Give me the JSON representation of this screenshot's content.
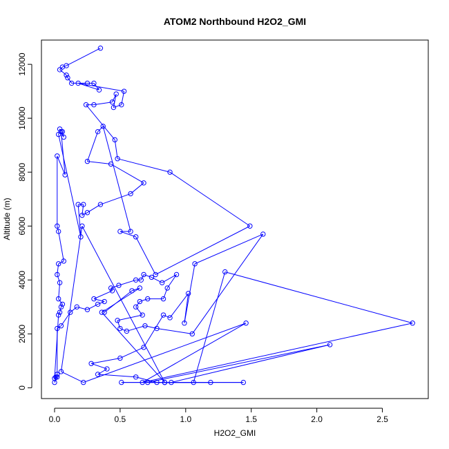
{
  "chart_data": {
    "type": "scatter",
    "title": "ATOM2 Northbound H2O2_GMI",
    "xlabel": "H2O2_GMI",
    "ylabel": "Altitude (m)",
    "xlim": [
      -0.1,
      2.85
    ],
    "ylim": [
      -400,
      12900
    ],
    "x_ticks": [
      0.0,
      0.5,
      1.0,
      1.5,
      2.0,
      2.5
    ],
    "x_tick_labels": [
      "0.0",
      "0.5",
      "1.0",
      "1.5",
      "2.0",
      "2.5"
    ],
    "y_ticks": [
      0,
      2000,
      4000,
      6000,
      8000,
      10000,
      12000
    ],
    "y_tick_labels": [
      "0",
      "2000",
      "4000",
      "6000",
      "8000",
      "10000",
      "12000"
    ],
    "grid": false,
    "legend": "none",
    "colors": {
      "series": "#0000ff",
      "axis": "#000000",
      "background": "#ffffff"
    },
    "series": [
      {
        "mode": "lines+markers",
        "x": [
          0.35,
          0.09,
          0.06,
          0.04,
          0.09,
          0.1,
          0.13,
          0.25,
          0.3,
          0.34,
          0.18,
          0.53,
          0.51,
          0.45,
          0.47,
          0.44,
          0.3,
          0.24,
          0.46,
          0.48,
          0.88,
          1.49,
          0.77,
          0.62,
          0.5,
          0.58,
          0.37,
          0.33,
          0.25,
          0.43,
          0.68,
          0.58,
          0.35,
          0.25,
          0.21,
          0.22,
          0.18,
          0.2,
          0.03,
          0.04,
          0.06,
          0.07,
          0.05,
          0.08,
          0.02,
          0.02,
          0.03,
          0.07,
          0.03,
          0.02,
          0.04,
          0.03,
          0.06,
          0.05,
          0.04,
          0.03,
          0.0,
          0.02,
          0.0,
          0.01,
          0.02,
          0.02,
          0.05,
          0.12,
          0.17,
          0.25,
          0.33,
          0.38,
          0.3,
          0.44,
          0.43,
          0.49,
          0.62,
          0.66,
          0.68,
          0.74,
          0.82,
          0.93,
          0.86,
          0.83,
          0.71,
          0.65,
          0.62,
          0.67,
          0.48,
          0.5,
          0.55,
          0.69,
          0.78,
          1.05,
          1.59,
          1.07,
          0.99,
          1.02,
          0.88,
          0.83,
          0.68,
          0.5,
          0.28,
          0.4,
          0.33,
          0.62,
          0.78,
          1.06,
          1.3,
          2.73,
          0.67,
          1.46,
          0.22,
          0.05,
          0.21,
          0.84,
          1.44,
          0.51,
          0.89,
          2.1,
          0.71,
          1.19,
          0.84,
          0.36,
          0.65,
          0.59,
          0.38
        ],
        "y": [
          12600,
          11950,
          11900,
          11800,
          11600,
          11500,
          11300,
          11300,
          11300,
          11050,
          11300,
          11000,
          10500,
          10400,
          10900,
          10600,
          10500,
          10500,
          9200,
          8500,
          8000,
          6000,
          4200,
          5600,
          5800,
          5800,
          9700,
          9500,
          8400,
          8300,
          7600,
          7200,
          6800,
          6500,
          6400,
          6800,
          6800,
          5600,
          9400,
          9600,
          9500,
          9300,
          9500,
          7900,
          8600,
          6000,
          5800,
          4700,
          4600,
          4200,
          3900,
          3300,
          3100,
          3000,
          2800,
          2700,
          350,
          400,
          200,
          400,
          500,
          2200,
          2300,
          2800,
          3000,
          2900,
          3100,
          3200,
          3300,
          3600,
          3700,
          3800,
          4000,
          4000,
          4200,
          4100,
          3900,
          4200,
          3700,
          3300,
          3300,
          3200,
          3000,
          2700,
          2500,
          2200,
          2100,
          2300,
          2200,
          2000,
          5700,
          4600,
          2400,
          3500,
          2600,
          2700,
          1500,
          1100,
          900,
          700,
          500,
          400,
          200,
          200,
          4300,
          2400,
          200,
          2400,
          200,
          600,
          6000,
          200,
          200,
          200,
          200,
          1600,
          200,
          200,
          200,
          2800,
          3700,
          3600,
          2800
        ]
      }
    ]
  }
}
